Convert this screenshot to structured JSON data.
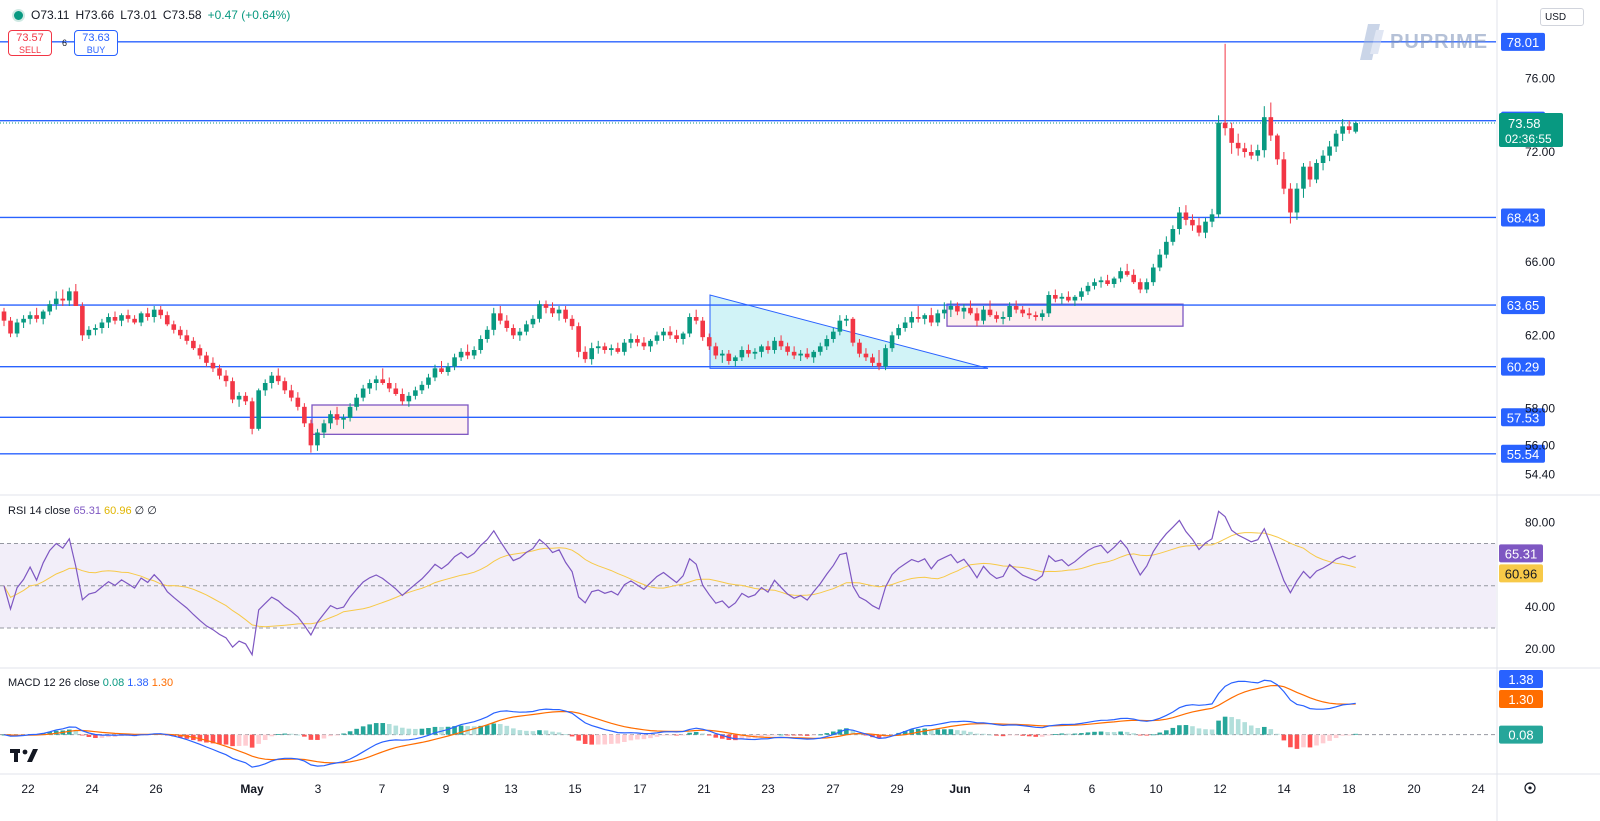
{
  "header": {
    "open": "O73.11",
    "high": "H73.66",
    "low": "L73.01",
    "close": "C73.58",
    "change": "+0.47 (+0.64%)",
    "sell_price": "73.57",
    "sell_label": "SELL",
    "buy_price": "73.63",
    "buy_label": "BUY",
    "spread": "6",
    "currency": "USD",
    "brand": "PUPRIME"
  },
  "colors": {
    "up": "#089981",
    "down": "#f23645",
    "level_line": "#2962ff",
    "rsi": "#7e57c2",
    "rsi_ma": "#f7c948",
    "macd": "#2962ff",
    "signal": "#ff6d00"
  },
  "chart_data": [
    {
      "type": "candlestick",
      "title": "",
      "ylim": [
        53.4,
        79.2
      ],
      "y_ticks": [
        "76.00",
        "72.00",
        "66.00",
        "62.00",
        "58.00",
        "56.00",
        "54.40"
      ],
      "x_ticks": [
        "22",
        "24",
        "26",
        "May",
        "3",
        "7",
        "9",
        "13",
        "15",
        "17",
        "21",
        "23",
        "27",
        "29",
        "Jun",
        "4",
        "6",
        "10",
        "12",
        "14",
        "18",
        "20",
        "24"
      ],
      "levels": [
        "78.01",
        "73.71",
        "68.43",
        "63.65",
        "60.29",
        "57.53",
        "55.54"
      ],
      "last_price": "73.58",
      "countdown": "02:36:55",
      "candles": [
        [
          63.3,
          63.5,
          62.5,
          62.8
        ],
        [
          62.8,
          63.0,
          61.9,
          62.1
        ],
        [
          62.1,
          62.9,
          61.9,
          62.7
        ],
        [
          62.7,
          63.1,
          62.4,
          62.9
        ],
        [
          62.9,
          63.3,
          62.6,
          63.1
        ],
        [
          63.1,
          63.5,
          62.7,
          62.9
        ],
        [
          62.9,
          63.4,
          62.6,
          63.3
        ],
        [
          63.3,
          63.9,
          63.1,
          63.7
        ],
        [
          63.7,
          64.4,
          63.4,
          64.0
        ],
        [
          64.0,
          64.5,
          63.6,
          63.9
        ],
        [
          63.9,
          64.6,
          63.6,
          64.4
        ],
        [
          64.4,
          64.8,
          63.6,
          63.6
        ],
        [
          63.6,
          63.8,
          61.7,
          62.0
        ],
        [
          62.0,
          62.5,
          61.8,
          62.3
        ],
        [
          62.3,
          62.6,
          62.0,
          62.4
        ],
        [
          62.4,
          62.9,
          62.1,
          62.7
        ],
        [
          62.7,
          63.2,
          62.4,
          63.0
        ],
        [
          63.0,
          63.3,
          62.6,
          62.8
        ],
        [
          62.8,
          63.2,
          62.5,
          63.1
        ],
        [
          63.1,
          63.4,
          62.7,
          62.9
        ],
        [
          62.9,
          63.1,
          62.6,
          62.7
        ],
        [
          62.7,
          63.3,
          62.5,
          63.2
        ],
        [
          63.2,
          63.5,
          62.8,
          63.0
        ],
        [
          63.0,
          63.6,
          62.7,
          63.4
        ],
        [
          63.4,
          63.6,
          62.9,
          63.1
        ],
        [
          63.1,
          63.3,
          62.5,
          62.6
        ],
        [
          62.6,
          62.8,
          62.1,
          62.3
        ],
        [
          62.3,
          62.5,
          61.8,
          62.0
        ],
        [
          62.0,
          62.3,
          61.5,
          61.7
        ],
        [
          61.7,
          61.9,
          61.2,
          61.3
        ],
        [
          61.3,
          61.5,
          60.7,
          60.9
        ],
        [
          60.9,
          61.1,
          60.3,
          60.5
        ],
        [
          60.5,
          60.8,
          60.0,
          60.2
        ],
        [
          60.2,
          60.4,
          59.6,
          59.8
        ],
        [
          59.8,
          60.1,
          59.2,
          59.5
        ],
        [
          59.5,
          59.7,
          58.3,
          58.5
        ],
        [
          58.5,
          58.9,
          58.1,
          58.7
        ],
        [
          58.7,
          58.9,
          58.2,
          58.4
        ],
        [
          58.4,
          58.6,
          56.6,
          56.9
        ],
        [
          56.9,
          59.1,
          56.8,
          59.0
        ],
        [
          59.0,
          59.6,
          58.7,
          59.4
        ],
        [
          59.4,
          60.0,
          59.1,
          59.8
        ],
        [
          59.8,
          60.2,
          59.3,
          59.5
        ],
        [
          59.5,
          59.7,
          58.8,
          59.0
        ],
        [
          59.0,
          59.3,
          58.4,
          58.6
        ],
        [
          58.6,
          58.9,
          57.9,
          58.1
        ],
        [
          58.1,
          58.3,
          57.0,
          57.2
        ],
        [
          57.2,
          57.4,
          55.6,
          56.0
        ],
        [
          56.0,
          56.9,
          55.7,
          56.7
        ],
        [
          56.7,
          57.4,
          56.4,
          57.2
        ],
        [
          57.2,
          57.9,
          56.9,
          57.7
        ],
        [
          57.7,
          58.1,
          57.1,
          57.4
        ],
        [
          57.4,
          57.7,
          56.9,
          57.5
        ],
        [
          57.5,
          58.3,
          57.3,
          58.1
        ],
        [
          58.1,
          58.8,
          57.9,
          58.6
        ],
        [
          58.6,
          59.3,
          58.4,
          59.1
        ],
        [
          59.1,
          59.6,
          58.8,
          59.4
        ],
        [
          59.4,
          59.8,
          59.0,
          59.6
        ],
        [
          59.6,
          60.2,
          59.3,
          59.4
        ],
        [
          59.4,
          59.7,
          58.9,
          59.1
        ],
        [
          59.1,
          59.4,
          58.7,
          58.8
        ],
        [
          58.8,
          59.1,
          58.2,
          58.4
        ],
        [
          58.4,
          58.9,
          58.1,
          58.7
        ],
        [
          58.7,
          59.2,
          58.5,
          59.0
        ],
        [
          59.0,
          59.5,
          58.8,
          59.3
        ],
        [
          59.3,
          59.9,
          59.1,
          59.7
        ],
        [
          59.7,
          60.4,
          59.5,
          60.2
        ],
        [
          60.2,
          60.6,
          59.9,
          60.0
        ],
        [
          60.0,
          60.5,
          59.8,
          60.3
        ],
        [
          60.3,
          61.0,
          60.1,
          60.8
        ],
        [
          60.8,
          61.3,
          60.6,
          61.1
        ],
        [
          61.1,
          61.5,
          60.7,
          60.9
        ],
        [
          60.9,
          61.4,
          60.7,
          61.2
        ],
        [
          61.2,
          62.0,
          61.0,
          61.8
        ],
        [
          61.8,
          62.5,
          61.6,
          62.3
        ],
        [
          62.3,
          63.5,
          62.0,
          63.2
        ],
        [
          63.2,
          63.6,
          62.6,
          62.8
        ],
        [
          62.8,
          63.1,
          62.2,
          62.4
        ],
        [
          62.4,
          62.6,
          61.8,
          62.0
        ],
        [
          62.0,
          62.4,
          61.7,
          62.2
        ],
        [
          62.2,
          62.8,
          62.0,
          62.6
        ],
        [
          62.6,
          63.1,
          62.4,
          62.9
        ],
        [
          62.9,
          63.9,
          62.7,
          63.7
        ],
        [
          63.7,
          63.9,
          63.2,
          63.5
        ],
        [
          63.5,
          63.8,
          63.0,
          63.2
        ],
        [
          63.2,
          63.6,
          62.8,
          63.4
        ],
        [
          63.4,
          63.6,
          62.7,
          62.9
        ],
        [
          62.9,
          63.1,
          62.3,
          62.5
        ],
        [
          62.5,
          62.7,
          60.8,
          61.1
        ],
        [
          61.1,
          61.4,
          60.5,
          60.7
        ],
        [
          60.7,
          61.6,
          60.4,
          61.3
        ],
        [
          61.3,
          61.7,
          61.0,
          61.4
        ],
        [
          61.4,
          61.6,
          61.0,
          61.2
        ],
        [
          61.2,
          61.5,
          60.9,
          61.3
        ],
        [
          61.3,
          61.6,
          61.0,
          61.1
        ],
        [
          61.1,
          61.8,
          60.9,
          61.6
        ],
        [
          61.6,
          62.1,
          61.3,
          61.8
        ],
        [
          61.8,
          62.0,
          61.4,
          61.6
        ],
        [
          61.6,
          61.9,
          61.2,
          61.4
        ],
        [
          61.4,
          61.8,
          61.1,
          61.7
        ],
        [
          61.7,
          62.2,
          61.5,
          62.0
        ],
        [
          62.0,
          62.4,
          61.7,
          62.2
        ],
        [
          62.2,
          62.5,
          61.8,
          62.0
        ],
        [
          62.0,
          62.3,
          61.6,
          61.8
        ],
        [
          61.8,
          62.2,
          61.5,
          62.1
        ],
        [
          62.1,
          63.2,
          61.9,
          63.0
        ],
        [
          63.0,
          63.4,
          62.6,
          62.8
        ],
        [
          62.8,
          63.0,
          61.7,
          61.9
        ],
        [
          61.9,
          62.1,
          61.2,
          61.4
        ],
        [
          61.4,
          61.6,
          60.7,
          60.9
        ],
        [
          60.9,
          61.2,
          60.5,
          61.0
        ],
        [
          61.0,
          61.2,
          60.4,
          60.6
        ],
        [
          60.6,
          60.9,
          60.3,
          60.8
        ],
        [
          60.8,
          61.4,
          60.6,
          61.2
        ],
        [
          61.2,
          61.5,
          60.8,
          61.0
        ],
        [
          61.0,
          61.3,
          60.7,
          61.1
        ],
        [
          61.1,
          61.5,
          60.8,
          61.4
        ],
        [
          61.4,
          61.7,
          61.0,
          61.2
        ],
        [
          61.2,
          61.9,
          61.0,
          61.7
        ],
        [
          61.7,
          62.0,
          61.2,
          61.4
        ],
        [
          61.4,
          61.6,
          60.9,
          61.1
        ],
        [
          61.1,
          61.4,
          60.7,
          60.9
        ],
        [
          60.9,
          61.2,
          60.6,
          61.0
        ],
        [
          61.0,
          61.3,
          60.7,
          60.8
        ],
        [
          60.8,
          61.2,
          60.5,
          61.1
        ],
        [
          61.1,
          61.6,
          60.9,
          61.4
        ],
        [
          61.4,
          62.0,
          61.2,
          61.8
        ],
        [
          61.8,
          62.4,
          61.6,
          62.2
        ],
        [
          62.2,
          63.1,
          62.0,
          62.8
        ],
        [
          62.8,
          63.1,
          62.5,
          62.9
        ],
        [
          62.9,
          63.0,
          61.4,
          61.6
        ],
        [
          61.6,
          61.8,
          60.8,
          61.0
        ],
        [
          61.0,
          61.3,
          60.6,
          60.8
        ],
        [
          60.8,
          61.0,
          60.3,
          60.5
        ],
        [
          60.5,
          61.2,
          60.1,
          60.3
        ],
        [
          60.3,
          61.5,
          60.1,
          61.3
        ],
        [
          61.3,
          62.2,
          61.1,
          62.0
        ],
        [
          62.0,
          62.6,
          61.8,
          62.4
        ],
        [
          62.4,
          63.0,
          62.2,
          62.7
        ],
        [
          62.7,
          63.3,
          62.4,
          63.0
        ],
        [
          63.0,
          63.6,
          62.7,
          62.9
        ],
        [
          62.9,
          63.2,
          62.6,
          63.1
        ],
        [
          63.1,
          63.5,
          62.5,
          62.7
        ],
        [
          62.7,
          63.4,
          62.5,
          63.2
        ],
        [
          63.2,
          63.8,
          62.9,
          63.4
        ],
        [
          63.4,
          63.9,
          63.0,
          63.6
        ],
        [
          63.6,
          63.8,
          63.1,
          63.3
        ],
        [
          63.3,
          63.7,
          62.9,
          63.5
        ],
        [
          63.5,
          63.9,
          63.1,
          63.2
        ],
        [
          63.2,
          63.5,
          62.5,
          62.8
        ],
        [
          62.8,
          63.6,
          62.6,
          63.4
        ],
        [
          63.4,
          63.9,
          63.0,
          63.1
        ],
        [
          63.1,
          63.3,
          62.7,
          62.9
        ],
        [
          62.9,
          63.3,
          62.6,
          63.0
        ],
        [
          63.0,
          63.8,
          62.8,
          63.6
        ],
        [
          63.6,
          63.9,
          63.2,
          63.4
        ],
        [
          63.4,
          63.6,
          63.0,
          63.2
        ],
        [
          63.2,
          63.5,
          62.9,
          63.1
        ],
        [
          63.1,
          63.3,
          62.8,
          63.0
        ],
        [
          63.0,
          63.4,
          62.8,
          63.2
        ],
        [
          63.2,
          64.4,
          63.0,
          64.2
        ],
        [
          64.2,
          64.5,
          63.8,
          64.0
        ],
        [
          64.0,
          64.3,
          63.7,
          64.1
        ],
        [
          64.1,
          64.4,
          63.8,
          63.9
        ],
        [
          63.9,
          64.2,
          63.6,
          64.1
        ],
        [
          64.1,
          64.6,
          63.9,
          64.4
        ],
        [
          64.4,
          64.9,
          64.2,
          64.7
        ],
        [
          64.7,
          65.1,
          64.5,
          64.9
        ],
        [
          64.9,
          65.2,
          64.6,
          65.0
        ],
        [
          65.0,
          65.3,
          64.7,
          64.8
        ],
        [
          64.8,
          65.2,
          64.6,
          65.1
        ],
        [
          65.1,
          65.7,
          64.9,
          65.5
        ],
        [
          65.5,
          65.9,
          65.2,
          65.3
        ],
        [
          65.3,
          65.6,
          64.8,
          64.9
        ],
        [
          64.9,
          65.1,
          64.3,
          64.5
        ],
        [
          64.5,
          65.1,
          64.3,
          64.9
        ],
        [
          64.9,
          65.9,
          64.7,
          65.7
        ],
        [
          65.7,
          66.7,
          65.5,
          66.4
        ],
        [
          66.4,
          67.4,
          66.2,
          67.1
        ],
        [
          67.1,
          68.0,
          66.9,
          67.8
        ],
        [
          67.8,
          69.0,
          67.5,
          68.7
        ],
        [
          68.7,
          69.1,
          68.0,
          68.3
        ],
        [
          68.3,
          68.6,
          67.7,
          68.0
        ],
        [
          68.0,
          68.4,
          67.4,
          67.6
        ],
        [
          67.6,
          68.4,
          67.3,
          68.2
        ],
        [
          68.2,
          68.9,
          67.9,
          68.6
        ],
        [
          68.6,
          74.0,
          68.4,
          73.6
        ],
        [
          73.6,
          77.9,
          72.9,
          73.3
        ],
        [
          73.3,
          73.6,
          71.9,
          72.5
        ],
        [
          72.5,
          73.0,
          71.8,
          72.2
        ],
        [
          72.2,
          72.5,
          71.7,
          72.0
        ],
        [
          72.0,
          72.4,
          71.6,
          71.8
        ],
        [
          71.8,
          72.4,
          71.5,
          72.1
        ],
        [
          72.1,
          74.5,
          71.7,
          73.9
        ],
        [
          73.9,
          74.7,
          72.6,
          72.9
        ],
        [
          72.9,
          73.0,
          71.3,
          71.6
        ],
        [
          71.6,
          72.0,
          69.7,
          70.0
        ],
        [
          70.0,
          70.3,
          68.1,
          68.7
        ],
        [
          68.7,
          70.3,
          68.3,
          70.0
        ],
        [
          70.0,
          71.4,
          69.5,
          71.2
        ],
        [
          71.2,
          71.5,
          70.1,
          70.5
        ],
        [
          70.5,
          71.6,
          70.3,
          71.4
        ],
        [
          71.4,
          72.1,
          71.0,
          71.8
        ],
        [
          71.8,
          72.6,
          71.5,
          72.3
        ],
        [
          72.3,
          73.2,
          72.0,
          73.0
        ],
        [
          73.0,
          73.8,
          72.6,
          73.4
        ],
        [
          73.4,
          73.7,
          73.0,
          73.2
        ],
        [
          73.11,
          73.66,
          73.01,
          73.58
        ]
      ]
    },
    {
      "type": "line",
      "name": "RSI 14 close",
      "legend_values": [
        "65.31",
        "60.96"
      ],
      "legend_suffix": "∅ ∅",
      "ylim": [
        12,
        92
      ],
      "y_ticks": [
        "80.00",
        "40.00",
        "20.00"
      ],
      "bands": [
        30,
        50,
        70
      ],
      "last_labels": [
        "65.31",
        "60.96"
      ]
    },
    {
      "type": "line",
      "name": "MACD 12 26 close",
      "legend_values": [
        "0.08",
        "1.38",
        "1.30"
      ],
      "last_labels": [
        "1.38",
        "1.30",
        "0.08"
      ]
    }
  ]
}
